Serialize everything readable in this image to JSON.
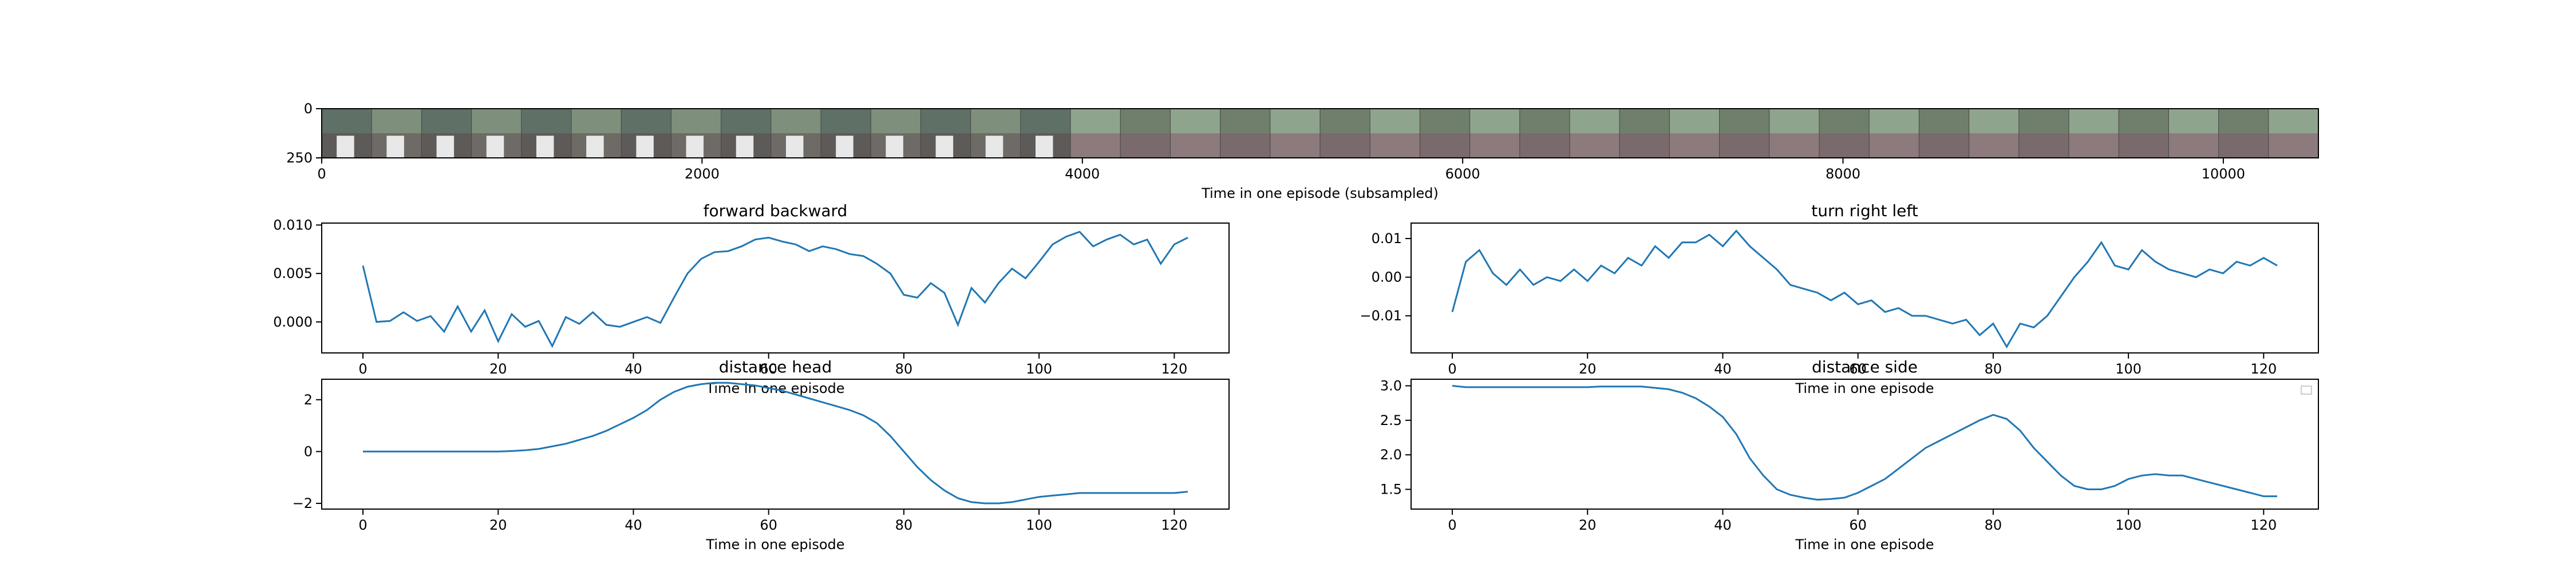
{
  "chart_data": [
    {
      "type": "image",
      "xlabel": "Time in one episode (subsampled)",
      "xlim": [
        0,
        10500
      ],
      "ylim": [
        250,
        0
      ],
      "xticks": [
        0,
        2000,
        4000,
        6000,
        8000,
        10000
      ],
      "yticks": [
        0,
        250
      ]
    },
    {
      "type": "line",
      "title": "forward backward",
      "xlabel": "Time in one episode",
      "color": "#1f77b4",
      "xlim": [
        -6.1,
        128.1
      ],
      "ylim": [
        -0.0032,
        0.0102
      ],
      "xticks": [
        0,
        20,
        40,
        60,
        80,
        100,
        120
      ],
      "yticks": [
        {
          "value": 0,
          "label": "0.000"
        },
        {
          "value": 0.005,
          "label": "0.005"
        },
        {
          "value": 0.01,
          "label": "0.010"
        }
      ],
      "x": [
        0,
        2,
        4,
        6,
        8,
        10,
        12,
        14,
        16,
        18,
        20,
        22,
        24,
        26,
        28,
        30,
        32,
        34,
        36,
        38,
        40,
        42,
        44,
        46,
        48,
        50,
        52,
        54,
        56,
        58,
        60,
        62,
        64,
        66,
        68,
        70,
        72,
        74,
        76,
        78,
        80,
        82,
        84,
        86,
        88,
        90,
        92,
        94,
        96,
        98,
        100,
        102,
        104,
        106,
        108,
        110,
        112,
        114,
        116,
        118,
        120,
        122
      ],
      "values": [
        0.0058,
        0.0,
        0.0001,
        0.001,
        0.0001,
        0.0006,
        -0.001,
        0.0016,
        -0.001,
        0.0012,
        -0.002,
        0.0008,
        -0.0005,
        0.0001,
        -0.0025,
        0.0005,
        -0.0002,
        0.001,
        -0.0003,
        -0.0005,
        0.0,
        0.0005,
        -0.0001,
        0.0025,
        0.005,
        0.0065,
        0.0072,
        0.0073,
        0.0078,
        0.0085,
        0.0087,
        0.0083,
        0.008,
        0.0073,
        0.0078,
        0.0075,
        0.007,
        0.0068,
        0.006,
        0.005,
        0.0028,
        0.0025,
        0.004,
        0.003,
        -0.0003,
        0.0035,
        0.002,
        0.004,
        0.0055,
        0.0045,
        0.0062,
        0.008,
        0.0088,
        0.0093,
        0.0078,
        0.0085,
        0.009,
        0.008,
        0.0085,
        0.006,
        0.008,
        0.0087
      ]
    },
    {
      "type": "line",
      "title": "turn right left",
      "xlabel": "Time in one episode",
      "color": "#1f77b4",
      "xlim": [
        -6.1,
        128.1
      ],
      "ylim": [
        -0.0196,
        0.014
      ],
      "xticks": [
        0,
        20,
        40,
        60,
        80,
        100,
        120
      ],
      "yticks": [
        {
          "value": -0.01,
          "label": "−0.01"
        },
        {
          "value": 0,
          "label": "0.00"
        },
        0.01
      ],
      "x": [
        0,
        2,
        4,
        6,
        8,
        10,
        12,
        14,
        16,
        18,
        20,
        22,
        24,
        26,
        28,
        30,
        32,
        34,
        36,
        38,
        40,
        42,
        44,
        46,
        48,
        50,
        52,
        54,
        56,
        58,
        60,
        62,
        64,
        66,
        68,
        70,
        72,
        74,
        76,
        78,
        80,
        82,
        84,
        86,
        88,
        90,
        92,
        94,
        96,
        98,
        100,
        102,
        104,
        106,
        108,
        110,
        112,
        114,
        116,
        118,
        120,
        122
      ],
      "values": [
        -0.009,
        0.004,
        0.007,
        0.001,
        -0.002,
        0.002,
        -0.002,
        0.0,
        -0.001,
        0.002,
        -0.001,
        0.003,
        0.001,
        0.005,
        0.003,
        0.008,
        0.005,
        0.009,
        0.009,
        0.011,
        0.008,
        0.012,
        0.008,
        0.005,
        0.002,
        -0.002,
        -0.003,
        -0.004,
        -0.006,
        -0.004,
        -0.007,
        -0.006,
        -0.009,
        -0.008,
        -0.01,
        -0.01,
        -0.011,
        -0.012,
        -0.011,
        -0.015,
        -0.012,
        -0.018,
        -0.012,
        -0.013,
        -0.01,
        -0.005,
        0.0,
        0.004,
        0.009,
        0.003,
        0.002,
        0.007,
        0.004,
        0.002,
        0.001,
        0.0,
        0.002,
        0.001,
        0.004,
        0.003,
        0.005,
        0.003
      ]
    },
    {
      "type": "line",
      "title": "distance head",
      "xlabel": "Time in one episode",
      "color": "#1f77b4",
      "xlim": [
        -6.1,
        128.1
      ],
      "ylim": [
        -2.22,
        2.79
      ],
      "xticks": [
        0,
        20,
        40,
        60,
        80,
        100,
        120
      ],
      "yticks": [
        {
          "value": -2,
          "label": "−2"
        },
        0,
        2
      ],
      "x": [
        0,
        2,
        4,
        6,
        8,
        10,
        12,
        14,
        16,
        18,
        20,
        22,
        24,
        26,
        28,
        30,
        32,
        34,
        36,
        38,
        40,
        42,
        44,
        46,
        48,
        50,
        52,
        54,
        56,
        58,
        60,
        62,
        64,
        66,
        68,
        70,
        72,
        74,
        76,
        78,
        80,
        82,
        84,
        86,
        88,
        90,
        92,
        94,
        96,
        98,
        100,
        102,
        104,
        106,
        108,
        110,
        112,
        114,
        116,
        118,
        120,
        122
      ],
      "values": [
        0,
        0,
        0,
        0,
        0,
        0,
        0,
        0,
        0,
        0,
        0,
        0.02,
        0.05,
        0.1,
        0.2,
        0.3,
        0.45,
        0.6,
        0.8,
        1.05,
        1.3,
        1.6,
        2.0,
        2.3,
        2.5,
        2.6,
        2.65,
        2.65,
        2.6,
        2.55,
        2.45,
        2.35,
        2.2,
        2.05,
        1.9,
        1.75,
        1.6,
        1.4,
        1.1,
        0.6,
        0.0,
        -0.6,
        -1.1,
        -1.5,
        -1.8,
        -1.95,
        -2.0,
        -2.0,
        -1.95,
        -1.85,
        -1.75,
        -1.7,
        -1.65,
        -1.6,
        -1.6,
        -1.6,
        -1.6,
        -1.6,
        -1.6,
        -1.6,
        -1.6,
        -1.55
      ]
    },
    {
      "type": "line",
      "title": "distance side",
      "xlabel": "Time in one episode",
      "color": "#1f77b4",
      "xlim": [
        -6.1,
        128.1
      ],
      "ylim": [
        1.214,
        3.095
      ],
      "xticks": [
        0,
        20,
        40,
        60,
        80,
        100,
        120
      ],
      "yticks": [
        {
          "value": 1.5,
          "label": "1.5"
        },
        {
          "value": 2,
          "label": "2.0"
        },
        {
          "value": 2.5,
          "label": "2.5"
        },
        {
          "value": 3,
          "label": "3.0"
        }
      ],
      "x": [
        0,
        2,
        4,
        6,
        8,
        10,
        12,
        14,
        16,
        18,
        20,
        22,
        24,
        26,
        28,
        30,
        32,
        34,
        36,
        38,
        40,
        42,
        44,
        46,
        48,
        50,
        52,
        54,
        56,
        58,
        60,
        62,
        64,
        66,
        68,
        70,
        72,
        74,
        76,
        78,
        80,
        82,
        84,
        86,
        88,
        90,
        92,
        94,
        96,
        98,
        100,
        102,
        104,
        106,
        108,
        110,
        112,
        114,
        116,
        118,
        120,
        122
      ],
      "values": [
        3.0,
        2.98,
        2.98,
        2.98,
        2.98,
        2.98,
        2.98,
        2.98,
        2.98,
        2.98,
        2.98,
        2.99,
        2.99,
        2.99,
        2.99,
        2.97,
        2.95,
        2.9,
        2.82,
        2.7,
        2.55,
        2.3,
        1.95,
        1.7,
        1.5,
        1.42,
        1.38,
        1.35,
        1.36,
        1.38,
        1.45,
        1.55,
        1.65,
        1.8,
        1.95,
        2.1,
        2.2,
        2.3,
        2.4,
        2.5,
        2.58,
        2.52,
        2.35,
        2.1,
        1.9,
        1.7,
        1.55,
        1.5,
        1.5,
        1.55,
        1.65,
        1.7,
        1.72,
        1.7,
        1.7,
        1.65,
        1.6,
        1.55,
        1.5,
        1.45,
        1.4,
        1.4
      ]
    }
  ]
}
